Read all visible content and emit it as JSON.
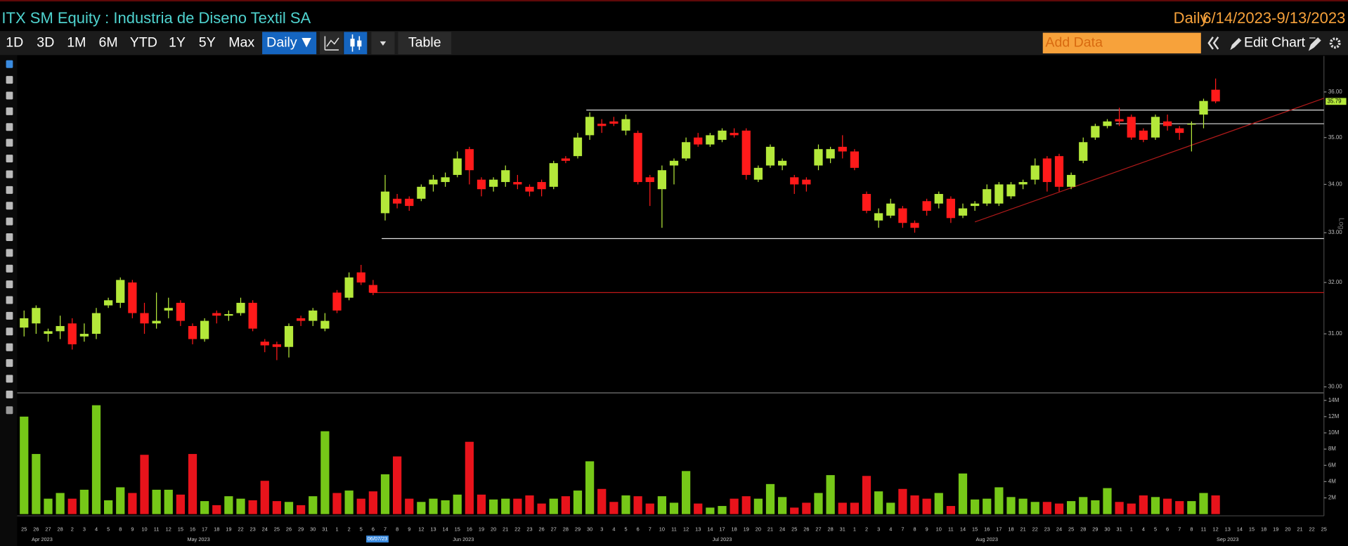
{
  "header": {
    "title": "ITX SM Equity : Industria de Diseno Textil SA",
    "period": "Daily",
    "range": "6/14/2023-9/13/2023"
  },
  "toolbar": {
    "buttons": [
      "1D",
      "3D",
      "1M",
      "6M",
      "YTD",
      "1Y",
      "5Y",
      "Max"
    ],
    "frequency": "Daily",
    "table": "Table",
    "add_data": "Add Data",
    "edit_chart": "Edit Chart"
  },
  "chart_data": {
    "type": "candlestick",
    "log_scale": true,
    "scale_label": "Log",
    "last_price_label": "35.79",
    "cursor_date": "06/07/23",
    "up_color": "#b4e83a",
    "down_color": "#ff1a1a",
    "volume_up_color": "#76c818",
    "volume_down_color": "#e8131b",
    "months": [
      {
        "name": "Apr 2023",
        "days": [
          "25",
          "26",
          "27",
          "28"
        ]
      },
      {
        "name": "May 2023",
        "days": [
          "2",
          "3",
          "4",
          "5",
          "8",
          "9",
          "10",
          "11",
          "12",
          "15",
          "16",
          "17",
          "18",
          "19",
          "22",
          "23",
          "24",
          "25",
          "26",
          "29",
          "30",
          "31"
        ]
      },
      {
        "name": "Jun 2023",
        "days": [
          "1",
          "2",
          "5",
          "6",
          "7",
          "8",
          "9",
          "12",
          "13",
          "14",
          "15",
          "16",
          "19",
          "20",
          "21",
          "22",
          "23",
          "26",
          "27",
          "28",
          "29",
          "30"
        ]
      },
      {
        "name": "Jul 2023",
        "days": [
          "3",
          "4",
          "5",
          "6",
          "7",
          "10",
          "11",
          "12",
          "13",
          "14",
          "17",
          "18",
          "19",
          "20",
          "21",
          "24",
          "25",
          "26",
          "27",
          "28",
          "31"
        ]
      },
      {
        "name": "Aug 2023",
        "days": [
          "1",
          "2",
          "3",
          "4",
          "7",
          "8",
          "9",
          "10",
          "11",
          "14",
          "15",
          "16",
          "17",
          "18",
          "21",
          "22",
          "23",
          "24",
          "25",
          "28",
          "29",
          "30",
          "31"
        ]
      },
      {
        "name": "Sep 2023",
        "days": [
          "1",
          "4",
          "5",
          "6",
          "7",
          "8",
          "11",
          "12",
          "13",
          "14",
          "15",
          "18",
          "19",
          "20",
          "21",
          "22",
          "25"
        ]
      }
    ],
    "open": [
      31.12,
      31.2,
      31.0,
      31.05,
      31.2,
      30.95,
      31.0,
      31.55,
      31.6,
      32.0,
      31.4,
      31.2,
      31.45,
      31.6,
      31.15,
      30.9,
      31.4,
      31.35,
      31.4,
      31.6,
      30.85,
      30.8,
      30.75,
      31.3,
      31.25,
      31.1,
      31.8,
      31.7,
      32.2,
      31.95,
      33.4,
      33.7,
      33.7,
      33.7,
      34.0,
      34.05,
      34.2,
      34.75,
      34.1,
      33.95,
      34.05,
      34.05,
      33.95,
      34.05,
      33.95,
      34.55,
      34.6,
      35.05,
      35.3,
      35.35,
      35.15,
      35.1,
      34.15,
      33.9,
      34.4,
      34.55,
      35.0,
      34.85,
      34.95,
      35.1,
      35.15,
      34.1,
      34.4,
      34.4,
      34.15,
      34.1,
      34.4,
      34.55,
      34.8,
      34.7,
      33.8,
      33.25,
      33.35,
      33.5,
      33.2,
      33.65,
      33.6,
      33.7,
      33.35,
      33.55,
      33.6,
      33.6,
      33.75,
      34.0,
      34.1,
      34.55,
      34.6,
      33.95,
      34.5,
      35.0,
      35.25,
      35.4,
      35.45,
      35.15,
      35.0,
      35.35,
      35.2,
      35.28,
      35.5,
      36.05,
      null,
      null,
      null,
      null,
      null,
      null,
      null,
      null,
      null
    ],
    "high": [
      31.45,
      31.55,
      31.1,
      31.35,
      31.3,
      31.2,
      31.5,
      31.7,
      32.1,
      32.05,
      31.6,
      31.8,
      31.7,
      31.65,
      31.2,
      31.3,
      31.45,
      31.45,
      31.7,
      31.65,
      30.9,
      30.85,
      31.2,
      31.35,
      31.5,
      31.4,
      31.85,
      32.2,
      32.35,
      32.05,
      34.2,
      33.8,
      33.75,
      34.0,
      34.2,
      34.25,
      34.7,
      34.8,
      34.15,
      34.15,
      34.4,
      34.2,
      34.0,
      34.1,
      34.5,
      34.6,
      35.1,
      35.55,
      35.4,
      35.45,
      35.5,
      35.15,
      34.2,
      34.4,
      34.55,
      35.0,
      35.1,
      35.1,
      35.2,
      35.2,
      35.2,
      34.4,
      34.85,
      34.55,
      34.2,
      34.15,
      34.85,
      34.8,
      35.05,
      34.75,
      33.85,
      33.5,
      33.7,
      33.55,
      33.25,
      33.7,
      33.85,
      33.75,
      33.6,
      33.65,
      34.0,
      34.05,
      34.05,
      34.1,
      34.55,
      34.6,
      34.65,
      34.25,
      35.0,
      35.3,
      35.4,
      35.65,
      35.5,
      35.2,
      35.5,
      35.5,
      35.25,
      35.35,
      35.85,
      36.3,
      null,
      null,
      null,
      null,
      null,
      null,
      null,
      null,
      null
    ],
    "low": [
      30.95,
      31.0,
      30.85,
      30.9,
      30.7,
      30.85,
      30.9,
      31.5,
      31.5,
      31.3,
      31.0,
      31.1,
      31.3,
      31.15,
      30.8,
      30.85,
      31.2,
      31.25,
      31.35,
      31.05,
      30.65,
      30.5,
      30.55,
      31.15,
      31.15,
      31.05,
      31.4,
      31.65,
      31.95,
      31.75,
      33.25,
      33.5,
      33.45,
      33.65,
      33.85,
      33.95,
      34.15,
      34.0,
      33.75,
      33.85,
      33.95,
      33.9,
      33.75,
      33.75,
      33.9,
      34.45,
      34.55,
      34.95,
      35.1,
      35.25,
      35.05,
      34.0,
      33.55,
      33.1,
      34.0,
      34.5,
      34.8,
      34.8,
      34.9,
      35.0,
      34.1,
      34.05,
      34.35,
      34.3,
      33.8,
      33.85,
      34.3,
      34.45,
      34.55,
      34.3,
      33.4,
      33.1,
      33.3,
      33.1,
      33.0,
      33.35,
      33.5,
      33.2,
      33.3,
      33.45,
      33.55,
      33.55,
      33.7,
      33.9,
      34.0,
      33.85,
      33.85,
      33.9,
      34.45,
      34.95,
      35.2,
      35.25,
      34.95,
      34.9,
      34.95,
      35.15,
      34.95,
      34.7,
      35.2,
      35.75,
      null,
      null,
      null,
      null,
      null,
      null,
      null,
      null,
      null
    ],
    "close": [
      31.3,
      31.5,
      31.05,
      31.15,
      30.8,
      31.0,
      31.4,
      31.65,
      32.05,
      31.4,
      31.2,
      31.25,
      31.5,
      31.25,
      30.9,
      31.25,
      31.35,
      31.38,
      31.6,
      31.1,
      30.78,
      30.75,
      31.15,
      31.25,
      31.45,
      31.25,
      31.45,
      32.1,
      32.0,
      31.8,
      33.85,
      33.6,
      33.55,
      33.95,
      34.1,
      34.15,
      34.55,
      34.3,
      33.9,
      34.1,
      34.3,
      34.0,
      33.85,
      33.9,
      34.45,
      34.5,
      35.0,
      35.45,
      35.25,
      35.3,
      35.4,
      34.05,
      34.05,
      34.3,
      34.5,
      34.9,
      34.85,
      35.05,
      35.15,
      35.05,
      34.2,
      34.35,
      34.8,
      34.5,
      34.0,
      34.0,
      34.75,
      34.75,
      34.7,
      34.35,
      33.45,
      33.4,
      33.6,
      33.2,
      33.1,
      33.45,
      33.8,
      33.3,
      33.5,
      33.6,
      33.9,
      34.0,
      34.0,
      34.05,
      34.4,
      34.05,
      33.95,
      34.2,
      34.9,
      35.25,
      35.35,
      35.35,
      35.0,
      34.95,
      35.45,
      35.25,
      35.1,
      35.3,
      35.8,
      35.79,
      null,
      null,
      null,
      null,
      null,
      null,
      null,
      null,
      null
    ],
    "volume": [
      12000000,
      7400000,
      1900000,
      2600000,
      1900000,
      3000000,
      13400000,
      1700000,
      3300000,
      2600000,
      7300000,
      3000000,
      3000000,
      2400000,
      7400000,
      1600000,
      1100000,
      2200000,
      1900000,
      1700000,
      4100000,
      1600000,
      1500000,
      1100000,
      2200000,
      10200000,
      2600000,
      2900000,
      1900000,
      2800000,
      4900000,
      7100000,
      1900000,
      1500000,
      1900000,
      1700000,
      2400000,
      8900000,
      2400000,
      1800000,
      1900000,
      1900000,
      2300000,
      1300000,
      1900000,
      2200000,
      2900000,
      6500000,
      3100000,
      1500000,
      2300000,
      2200000,
      1300000,
      2200000,
      1400000,
      5300000,
      1300000,
      800000,
      1000000,
      1900000,
      2200000,
      1900000,
      3700000,
      2100000,
      800000,
      1400000,
      2600000,
      4800000,
      1400000,
      1400000,
      4700000,
      2800000,
      1400000,
      3100000,
      2300000,
      1900000,
      2600000,
      1000000,
      5000000,
      1800000,
      1900000,
      3300000,
      2100000,
      1900000,
      1500000,
      1500000,
      1300000,
      1600000,
      2100000,
      1700000,
      3200000,
      1500000,
      1300000,
      2300000,
      2100000,
      1900000,
      1600000,
      1600000,
      2600000,
      2300000,
      null,
      null,
      null,
      null,
      null,
      null,
      null,
      null,
      null
    ],
    "ylim": [
      29.92,
      36.81
    ],
    "yticks": [
      {
        "value": 30,
        "label": "30.00"
      },
      {
        "value": 31,
        "label": "31.00"
      },
      {
        "value": 32,
        "label": "32.00"
      },
      {
        "value": 33,
        "label": "33.00"
      },
      {
        "value": 34,
        "label": "34.00"
      },
      {
        "value": 35,
        "label": "35.00"
      },
      {
        "value": 36,
        "label": "36.00"
      }
    ],
    "y2lim": [
      0,
      14600000
    ],
    "y2ticks": [
      {
        "value": 2000000,
        "label": "2M"
      },
      {
        "value": 4000000,
        "label": "4M"
      },
      {
        "value": 6000000,
        "label": "6M"
      },
      {
        "value": 8000000,
        "label": "8M"
      },
      {
        "value": 10000000,
        "label": "10M"
      },
      {
        "value": 12000000,
        "label": "12M"
      },
      {
        "value": 14000000,
        "label": "14M"
      }
    ],
    "levels": [
      {
        "value": 32.88,
        "color": "#e0e0e0",
        "start": 30
      },
      {
        "value": 35.6,
        "color": "#e0e0e0",
        "start": 47
      },
      {
        "value": 35.3,
        "color": "#e0e0e0",
        "start": 91
      },
      {
        "value": 31.8,
        "color": "#c01818",
        "start": 29
      }
    ],
    "trendlines": [
      {
        "color": "#b01a1a",
        "points": [
          [
            79,
            33.22
          ],
          [
            108,
            35.86
          ]
        ]
      }
    ]
  }
}
